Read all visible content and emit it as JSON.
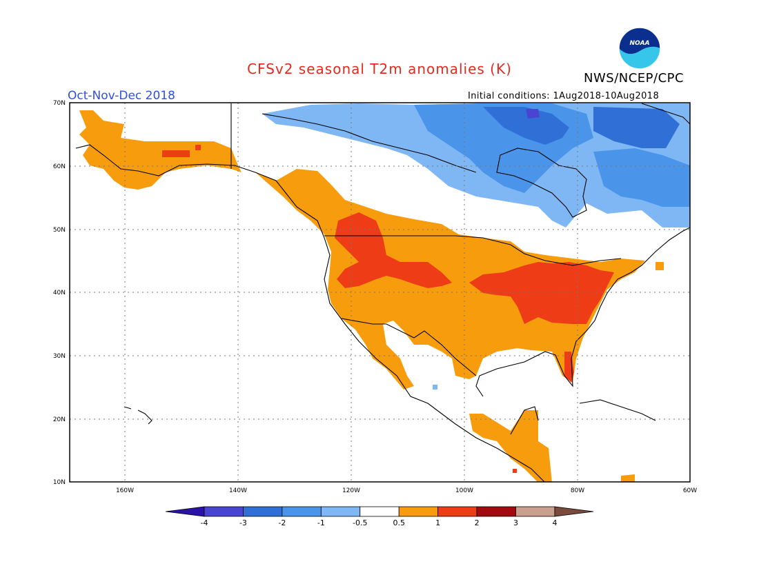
{
  "title": "CFSv2 seasonal T2m anomalies (K)",
  "agency": "NWS/NCEP/CPC",
  "logo_text": "NOAA",
  "season": "Oct-Nov-Dec 2018",
  "initial_conditions": "Initial conditions:  1Aug2018-10Aug2018",
  "map": {
    "lon_range": [
      -172,
      -60
    ],
    "lat_range": [
      10,
      70
    ],
    "grid_style": "dotted",
    "lat_ticks": [
      "10N",
      "20N",
      "30N",
      "40N",
      "50N",
      "60N",
      "70N"
    ],
    "lon_ticks": [
      "160W",
      "140W",
      "120W",
      "100W",
      "80W",
      "60W"
    ],
    "anomaly_regions": [
      {
        "name": "Alaska",
        "category": "0.5 to 1"
      },
      {
        "name": "Western US and Canada",
        "category": "0.5 to 1"
      },
      {
        "name": "Northern Rockies",
        "category": "1 to 2"
      },
      {
        "name": "Ohio Valley and Mid-Atlantic",
        "category": "1 to 2"
      },
      {
        "name": "Florida",
        "category": "1 to 2"
      },
      {
        "name": "Central America",
        "category": "0.5 to 1"
      },
      {
        "name": "Northern Canada",
        "category": "-1 to -0.5"
      },
      {
        "name": "Hudson Bay / Quebec",
        "category": "-2 to -1"
      },
      {
        "name": "Canadian Arctic islands",
        "category": "-3 to -2"
      }
    ]
  },
  "colorbar": {
    "labels": [
      "-4",
      "-3",
      "-2",
      "-1",
      "-0.5",
      "0.5",
      "1",
      "2",
      "3",
      "4"
    ],
    "colors": [
      "#2b13a8",
      "#4a45d1",
      "#2f6fd6",
      "#4a95ea",
      "#7fb7f5",
      "#ffffff",
      "#f79d0d",
      "#ee3c17",
      "#a3090f",
      "#c9a08d",
      "#7a4b3c"
    ]
  },
  "colors": {
    "title": "#e8281e",
    "season": "#2f4ee8",
    "cold1": "#7fb7f5",
    "cold2": "#4a95ea",
    "cold3": "#2f6fd6",
    "warm1": "#f79d0d",
    "warm2": "#ee3c17"
  }
}
